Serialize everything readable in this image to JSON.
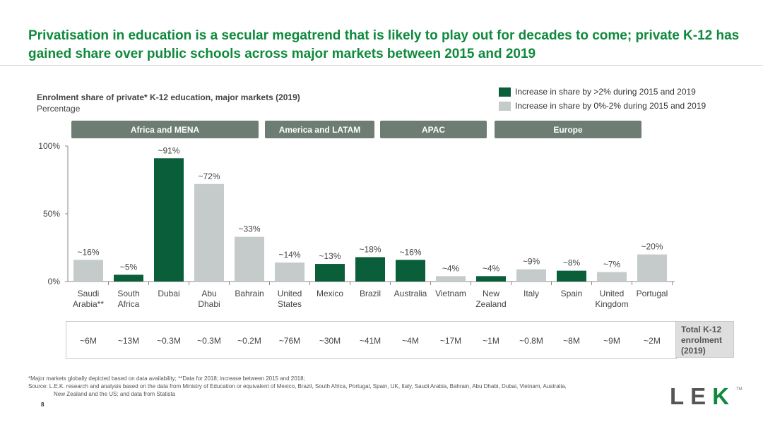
{
  "title": "Privatisation in education is a secular megatrend that is likely to play out for decades to come; private K-12 has gained share over public schools across major markets between 2015 and 2019",
  "colors": {
    "accent": "#0f8a3c",
    "dark_green": "#0b5e3a",
    "light_grey": "#c5cbcb",
    "region_bg": "#6d7d73"
  },
  "regions": [
    "Africa and MENA",
    "America and LATAM",
    "APAC",
    "Europe"
  ],
  "legend": [
    {
      "label": "Increase in share by >2% during 2015 and 2019",
      "color": "#0b5e3a"
    },
    {
      "label": "Increase in share by 0%-2% during 2015 and 2019",
      "color": "#c5cbcb"
    }
  ],
  "chart_data": {
    "type": "bar",
    "title": "Enrolment share of private* K-12 education, major markets (2019)",
    "subtitle": "Percentage",
    "categories": [
      "Saudi\nArabia**",
      "South\nAfrica",
      "Dubai",
      "Abu\nDhabi",
      "Bahrain",
      "United\nStates",
      "Mexico",
      "Brazil",
      "Australia",
      "Vietnam",
      "New\nZealand",
      "Italy",
      "Spain",
      "United\nKingdom",
      "Portugal"
    ],
    "values": [
      16,
      5,
      91,
      72,
      33,
      14,
      13,
      18,
      16,
      4,
      4,
      9,
      8,
      7,
      20
    ],
    "data_labels": [
      "~16%",
      "~5%",
      "~91%",
      "~72%",
      "~33%",
      "~14%",
      "~13%",
      "~18%",
      "~16%",
      "~4%",
      "~4%",
      "~9%",
      "~8%",
      "~7%",
      "~20%"
    ],
    "growth_group": [
      "low",
      "high",
      "high",
      "low",
      "low",
      "low",
      "high",
      "high",
      "high",
      "low",
      "high",
      "low",
      "high",
      "low",
      "low"
    ],
    "yticks": [
      "0%",
      "50%",
      "100%"
    ],
    "ylim": [
      0,
      100
    ]
  },
  "enrolment": {
    "label": "Total K-12\nenrolment\n(2019)",
    "values": [
      "~6M",
      "~13M",
      "~0.3M",
      "~0.3M",
      "~0.2M",
      "~76M",
      "~30M",
      "~41M",
      "~4M",
      "~17M",
      "~1M",
      "~0.8M",
      "~8M",
      "~9M",
      "~2M"
    ]
  },
  "footnote": {
    "line1": "*Major markets globally depicted based on data availability; **Data for 2018; increase between 2015 and 2018;",
    "line2": "Source: L.E.K. research and analysis based on the data from Ministry of Education or equivalent of Mexico, Brazil, South Africa, Portugal, Spain, UK, Italy, Saudi Arabia, Bahrain, Abu Dhabi, Dubai, Vietnam, Australia,",
    "line3": "New Zealand and the US; and data from Statista"
  },
  "page_number": "8",
  "logo": {
    "left": "LE",
    "right": "K",
    "tm": "TM"
  }
}
